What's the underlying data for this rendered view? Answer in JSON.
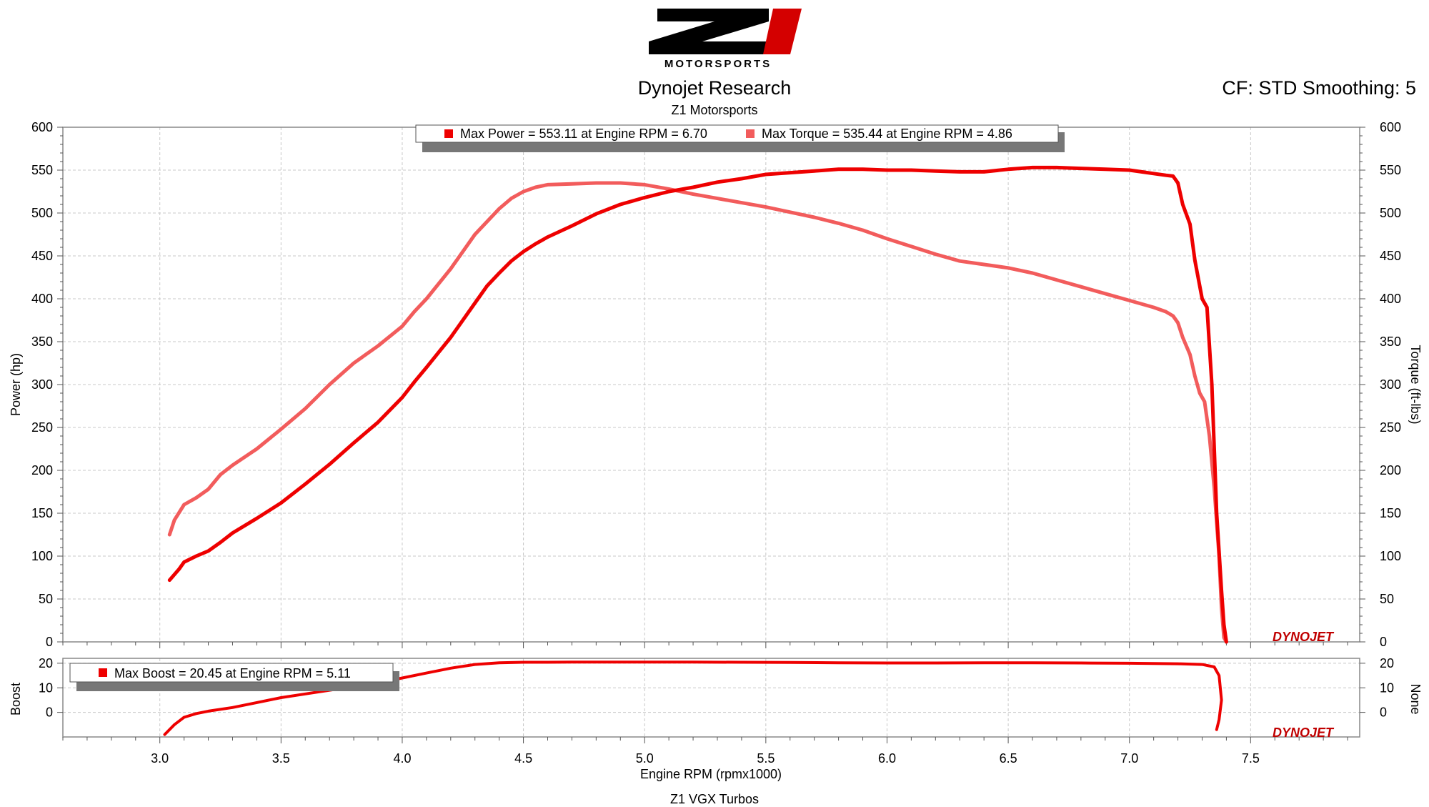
{
  "header": {
    "logo_mark": "Z1",
    "logo_text": "MOTORSPORTS",
    "title": "Dynojet Research",
    "subtitle": "Z1 Motorsports",
    "cf_label": "CF: STD Smoothing: 5",
    "footer": "Z1 VGX Turbos"
  },
  "brand": "DYNOJET",
  "colors": {
    "power": "#ee0000",
    "torque": "#f25c5c",
    "boost": "#ee0000",
    "grid": "#c8c8c8",
    "logo_red": "#d40000"
  },
  "chart_data": [
    {
      "type": "line",
      "xlabel": "Engine RPM (rpmx1000)",
      "ylabel": "Power (hp)",
      "y2label": "Torque (ft-lbs)",
      "xlim": [
        2.6,
        7.95
      ],
      "ylim": [
        0,
        600
      ],
      "y2lim": [
        0,
        600
      ],
      "xticks": [
        3.0,
        3.5,
        4.0,
        4.5,
        5.0,
        5.5,
        6.0,
        6.5,
        7.0,
        7.5
      ],
      "yticks": [
        0,
        50,
        100,
        150,
        200,
        250,
        300,
        350,
        400,
        450,
        500,
        550,
        600
      ],
      "grid": true,
      "legend": "top-center",
      "legend_entries": [
        "Max Power = 553.11 at Engine RPM = 6.70",
        "Max Torque = 535.44 at Engine RPM = 4.86"
      ],
      "series": [
        {
          "name": "Max Power = 553.11 at Engine RPM = 6.70",
          "axis": "left",
          "x": [
            3.04,
            3.08,
            3.1,
            3.15,
            3.2,
            3.25,
            3.3,
            3.4,
            3.5,
            3.6,
            3.7,
            3.8,
            3.9,
            4.0,
            4.05,
            4.1,
            4.2,
            4.3,
            4.35,
            4.4,
            4.45,
            4.5,
            4.55,
            4.6,
            4.7,
            4.8,
            4.9,
            5.0,
            5.1,
            5.2,
            5.3,
            5.4,
            5.5,
            5.6,
            5.7,
            5.8,
            5.9,
            6.0,
            6.1,
            6.2,
            6.3,
            6.4,
            6.5,
            6.6,
            6.7,
            6.8,
            6.9,
            7.0,
            7.05,
            7.1,
            7.15,
            7.18,
            7.2,
            7.22,
            7.25,
            7.27,
            7.3,
            7.32,
            7.34,
            7.36,
            7.38,
            7.39,
            7.4
          ],
          "y": [
            72,
            85,
            93,
            100,
            106,
            116,
            127,
            144,
            162,
            184,
            207,
            232,
            256,
            285,
            303,
            320,
            355,
            395,
            415,
            430,
            444,
            455,
            464,
            472,
            485,
            499,
            510,
            518,
            525,
            530,
            536,
            540,
            545,
            547,
            549,
            551,
            551,
            550,
            550,
            549,
            548,
            548,
            551,
            553,
            553,
            552,
            551,
            550,
            548,
            546,
            544,
            543,
            535,
            510,
            487,
            445,
            400,
            390,
            300,
            150,
            60,
            20,
            0
          ],
          "stroke_width": 5
        },
        {
          "name": "Max Torque = 535.44 at Engine RPM = 4.86",
          "axis": "right",
          "x": [
            3.04,
            3.06,
            3.1,
            3.15,
            3.2,
            3.25,
            3.3,
            3.4,
            3.5,
            3.6,
            3.7,
            3.8,
            3.9,
            4.0,
            4.05,
            4.1,
            4.2,
            4.3,
            4.35,
            4.4,
            4.45,
            4.5,
            4.55,
            4.6,
            4.7,
            4.8,
            4.86,
            4.9,
            5.0,
            5.1,
            5.2,
            5.3,
            5.4,
            5.5,
            5.6,
            5.7,
            5.8,
            5.9,
            6.0,
            6.1,
            6.2,
            6.3,
            6.4,
            6.5,
            6.6,
            6.7,
            6.8,
            6.9,
            7.0,
            7.1,
            7.15,
            7.18,
            7.2,
            7.22,
            7.25,
            7.27,
            7.29,
            7.31,
            7.33,
            7.35,
            7.37,
            7.38,
            7.39,
            7.4
          ],
          "y": [
            125,
            142,
            160,
            168,
            178,
            195,
            206,
            225,
            248,
            272,
            300,
            325,
            345,
            368,
            385,
            400,
            435,
            475,
            490,
            505,
            517,
            525,
            530,
            533,
            534,
            535,
            535,
            535,
            533,
            528,
            522,
            517,
            512,
            507,
            501,
            495,
            488,
            480,
            470,
            461,
            452,
            444,
            440,
            436,
            430,
            422,
            414,
            406,
            398,
            390,
            385,
            380,
            372,
            355,
            335,
            310,
            290,
            280,
            240,
            180,
            100,
            40,
            5,
            0
          ],
          "stroke_width": 5
        }
      ]
    },
    {
      "type": "line",
      "xlabel": "",
      "ylabel": "Boost",
      "y2label": "None",
      "xlim": [
        2.6,
        7.95
      ],
      "ylim": [
        -10,
        22
      ],
      "yticks": [
        0,
        10,
        20
      ],
      "grid": true,
      "legend": "top-left",
      "legend_entries": [
        "Max Boost = 20.45 at Engine RPM = 5.11"
      ],
      "series": [
        {
          "name": "Max Boost = 20.45 at Engine RPM = 5.11",
          "axis": "left",
          "x": [
            3.02,
            3.06,
            3.1,
            3.15,
            3.2,
            3.3,
            3.4,
            3.5,
            3.6,
            3.7,
            3.8,
            3.9,
            4.0,
            4.1,
            4.2,
            4.3,
            4.4,
            4.5,
            4.6,
            4.7,
            4.8,
            4.9,
            5.0,
            5.11,
            5.2,
            5.4,
            5.6,
            5.8,
            6.0,
            6.2,
            6.4,
            6.6,
            6.8,
            7.0,
            7.2,
            7.3,
            7.35,
            7.37,
            7.38,
            7.37,
            7.36
          ],
          "y": [
            -9,
            -5,
            -2,
            -0.5,
            0.5,
            2,
            4,
            6,
            7.5,
            9,
            10.5,
            12,
            14,
            16,
            18,
            19.5,
            20.2,
            20.4,
            20.4,
            20.45,
            20.45,
            20.45,
            20.45,
            20.45,
            20.45,
            20.4,
            20.3,
            20.2,
            20.1,
            20.1,
            20.2,
            20.2,
            20.1,
            20,
            19.8,
            19.5,
            18.5,
            15,
            5,
            -3,
            -7
          ],
          "stroke_width": 4
        }
      ]
    }
  ]
}
